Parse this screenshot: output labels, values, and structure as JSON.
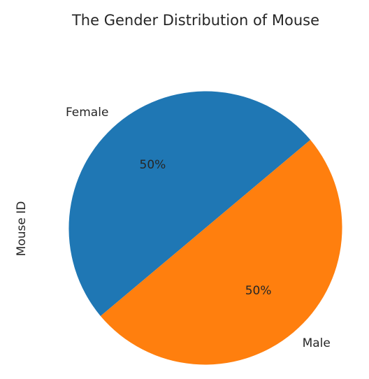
{
  "chart_data": {
    "type": "pie",
    "title": "The Gender Distribution of Mouse",
    "ylabel": "Mouse ID",
    "categories": [
      "Female",
      "Male"
    ],
    "values": [
      50,
      50
    ],
    "percent_labels": [
      "50%",
      "50%"
    ],
    "colors": [
      "#1f77b4",
      "#ff7f0e"
    ],
    "start_angle_deg": 40
  }
}
